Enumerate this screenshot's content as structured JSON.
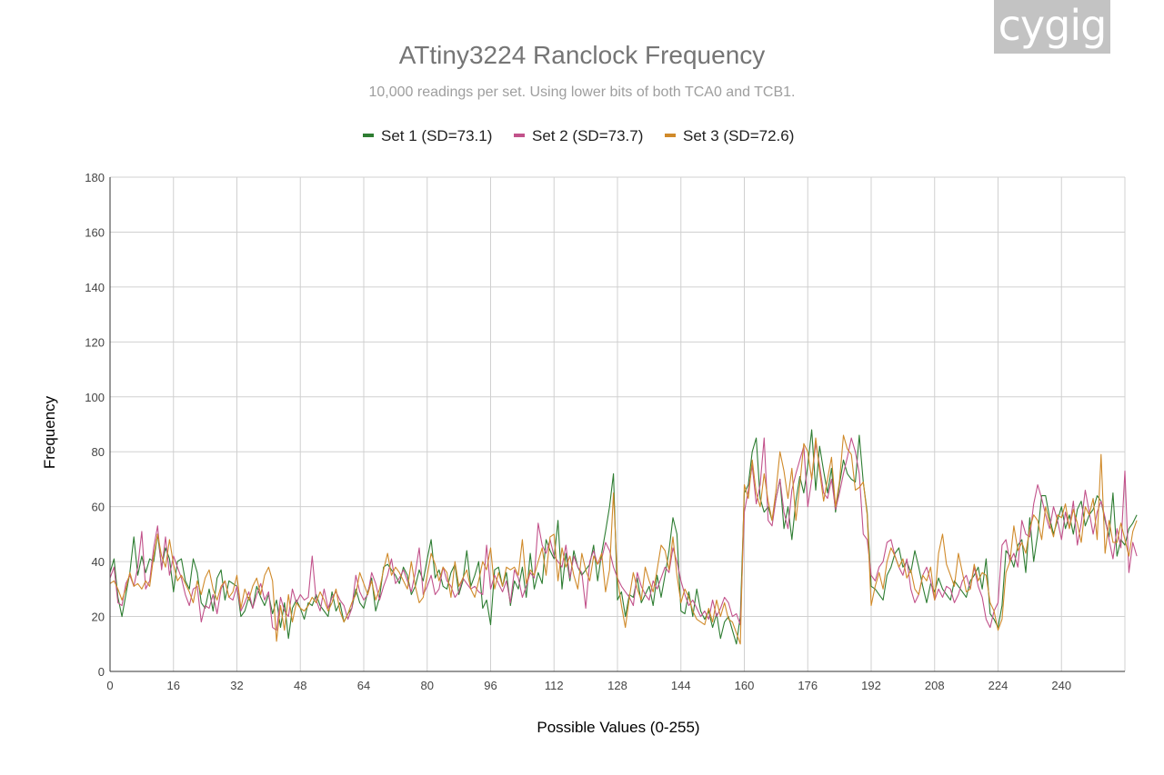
{
  "watermark": "cygig",
  "chart_data": {
    "type": "line",
    "title": "ATtiny3224 Ranclock Frequency",
    "subtitle": "10,000 readings per set. Using lower bits of both TCA0 and TCB1.",
    "xlabel": "Possible Values (0-255)",
    "ylabel": "Frequency",
    "xlim": [
      0,
      255
    ],
    "ylim": [
      0,
      180
    ],
    "xticks": [
      0,
      16,
      32,
      48,
      64,
      80,
      96,
      112,
      128,
      144,
      160,
      176,
      192,
      208,
      224,
      240
    ],
    "yticks": [
      0,
      20,
      40,
      60,
      80,
      100,
      120,
      140,
      160,
      180
    ],
    "grid": true,
    "legend_position": "top",
    "series": [
      {
        "name": "Set 1 (SD=73.1)",
        "color": "#2e7d32",
        "values": [
          36,
          41,
          27,
          20,
          28,
          36,
          49,
          35,
          42,
          36,
          41,
          40,
          50,
          38,
          45,
          41,
          29,
          40,
          41,
          33,
          30,
          41,
          36,
          25,
          23,
          30,
          22,
          34,
          37,
          26,
          33,
          32,
          31,
          20,
          22,
          27,
          23,
          31,
          27,
          24,
          28,
          21,
          26,
          16,
          25,
          12,
          23,
          26,
          23,
          19,
          25,
          24,
          28,
          24,
          22,
          20,
          29,
          22,
          25,
          18,
          21,
          23,
          30,
          25,
          23,
          29,
          34,
          22,
          27,
          38,
          39,
          37,
          35,
          32,
          38,
          35,
          28,
          31,
          37,
          33,
          41,
          48,
          34,
          37,
          31,
          30,
          36,
          39,
          28,
          33,
          44,
          31,
          35,
          40,
          23,
          26,
          17,
          37,
          38,
          31,
          36,
          24,
          33,
          30,
          38,
          27,
          43,
          30,
          36,
          32,
          48,
          44,
          41,
          55,
          30,
          43,
          33,
          44,
          38,
          35,
          37,
          39,
          46,
          33,
          43,
          51,
          60,
          72,
          26,
          29,
          20,
          28,
          27,
          34,
          25,
          28,
          31,
          24,
          35,
          27,
          35,
          44,
          56,
          50,
          22,
          21,
          29,
          20,
          30,
          22,
          19,
          22,
          16,
          21,
          12,
          18,
          20,
          15,
          10,
          20,
          65,
          68,
          80,
          85,
          63,
          58,
          60,
          55,
          63,
          70,
          52,
          60,
          48,
          62,
          71,
          65,
          75,
          88,
          66,
          82,
          73,
          65,
          74,
          58,
          68,
          77,
          72,
          70,
          69,
          86,
          69,
          58,
          31,
          30,
          28,
          26,
          35,
          38,
          43,
          45,
          38,
          40,
          36,
          44,
          38,
          31,
          25,
          32,
          29,
          34,
          30,
          28,
          26,
          33,
          31,
          29,
          27,
          33,
          35,
          38,
          30,
          41,
          21,
          19,
          16,
          24,
          44,
          42,
          38,
          46,
          48,
          36,
          56,
          40,
          50,
          64,
          64,
          56,
          50,
          55,
          60,
          52,
          57,
          50,
          59,
          62,
          53,
          57,
          59,
          64,
          62,
          55,
          49,
          65,
          42,
          48,
          46,
          52,
          54,
          57
        ]
      },
      {
        "name": "Set 2 (SD=73.7)",
        "color": "#c2528b",
        "values": [
          34,
          38,
          25,
          24,
          32,
          35,
          31,
          38,
          51,
          30,
          33,
          45,
          53,
          37,
          49,
          35,
          42,
          38,
          34,
          28,
          24,
          30,
          31,
          18,
          24,
          23,
          28,
          21,
          30,
          33,
          27,
          26,
          31,
          22,
          25,
          29,
          23,
          28,
          32,
          26,
          29,
          16,
          15,
          27,
          22,
          20,
          30,
          25,
          28,
          26,
          27,
          42,
          26,
          22,
          30,
          23,
          27,
          29,
          26,
          24,
          19,
          23,
          35,
          29,
          26,
          28,
          36,
          32,
          26,
          31,
          35,
          41,
          32,
          34,
          37,
          33,
          29,
          36,
          45,
          28,
          31,
          35,
          28,
          30,
          38,
          33,
          31,
          27,
          29,
          34,
          32,
          30,
          31,
          29,
          28,
          46,
          30,
          35,
          32,
          29,
          33,
          25,
          37,
          34,
          27,
          31,
          36,
          34,
          54,
          46,
          43,
          48,
          42,
          40,
          38,
          46,
          34,
          42,
          38,
          36,
          23,
          40,
          44,
          39,
          41,
          47,
          44,
          38,
          34,
          31,
          29,
          27,
          24,
          36,
          31,
          28,
          26,
          33,
          30,
          34,
          38,
          36,
          45,
          40,
          33,
          28,
          24,
          26,
          23,
          20,
          22,
          19,
          26,
          20,
          23,
          27,
          25,
          20,
          21,
          17,
          58,
          66,
          75,
          61,
          68,
          85,
          55,
          53,
          63,
          70,
          58,
          52,
          66,
          72,
          77,
          82,
          60,
          70,
          83,
          75,
          65,
          63,
          70,
          59,
          65,
          72,
          78,
          85,
          80,
          72,
          50,
          48,
          35,
          33,
          38,
          40,
          47,
          48,
          42,
          38,
          35,
          41,
          30,
          25,
          28,
          35,
          38,
          33,
          26,
          30,
          27,
          31,
          30,
          25,
          28,
          33,
          35,
          30,
          38,
          31,
          27,
          19,
          16,
          22,
          25,
          46,
          48,
          40,
          43,
          38,
          55,
          50,
          49,
          61,
          68,
          63,
          57,
          52,
          60,
          55,
          48,
          58,
          52,
          62,
          46,
          54,
          66,
          58,
          50,
          58,
          62,
          56,
          48,
          41,
          52,
          45,
          73,
          36,
          47,
          42
        ]
      },
      {
        "name": "Set 3 (SD=72.6)",
        "color": "#d08a2a",
        "values": [
          32,
          33,
          30,
          26,
          30,
          36,
          31,
          32,
          30,
          33,
          31,
          42,
          50,
          42,
          38,
          48,
          39,
          33,
          35,
          32,
          29,
          25,
          33,
          28,
          34,
          37,
          30,
          26,
          31,
          33,
          27,
          29,
          35,
          23,
          30,
          26,
          31,
          34,
          28,
          35,
          38,
          33,
          11,
          24,
          15,
          28,
          18,
          25,
          23,
          22,
          24,
          27,
          25,
          29,
          26,
          22,
          25,
          30,
          22,
          18,
          21,
          25,
          28,
          36,
          32,
          28,
          33,
          26,
          30,
          37,
          43,
          35,
          38,
          36,
          33,
          30,
          40,
          31,
          25,
          27,
          35,
          43,
          39,
          33,
          38,
          36,
          27,
          40,
          31,
          34,
          37,
          30,
          27,
          33,
          40,
          37,
          45,
          30,
          36,
          31,
          38,
          37,
          38,
          35,
          48,
          32,
          37,
          35,
          40,
          45,
          35,
          49,
          50,
          33,
          45,
          38,
          42,
          35,
          30,
          43,
          37,
          33,
          42,
          39,
          43,
          29,
          37,
          65,
          34,
          24,
          16,
          27,
          36,
          30,
          26,
          38,
          33,
          29,
          37,
          46,
          44,
          37,
          49,
          35,
          25,
          30,
          27,
          22,
          19,
          18,
          17,
          23,
          18,
          26,
          20,
          25,
          19,
          18,
          14,
          10,
          68,
          63,
          77,
          65,
          60,
          72,
          62,
          55,
          66,
          80,
          73,
          63,
          74,
          55,
          68,
          83,
          80,
          70,
          85,
          73,
          62,
          70,
          78,
          60,
          69,
          86,
          81,
          79,
          66,
          67,
          69,
          57,
          24,
          31,
          36,
          30,
          40,
          45,
          42,
          38,
          41,
          34,
          37,
          30,
          28,
          35,
          33,
          38,
          26,
          43,
          50,
          39,
          35,
          31,
          43,
          36,
          29,
          30,
          39,
          33,
          36,
          35,
          25,
          22,
          15,
          19,
          36,
          40,
          53,
          44,
          47,
          43,
          52,
          57,
          55,
          48,
          60,
          54,
          49,
          57,
          56,
          61,
          52,
          59,
          54,
          47,
          60,
          57,
          63,
          48,
          79,
          43,
          55,
          47,
          47,
          54,
          48,
          42,
          51,
          55
        ]
      }
    ]
  }
}
